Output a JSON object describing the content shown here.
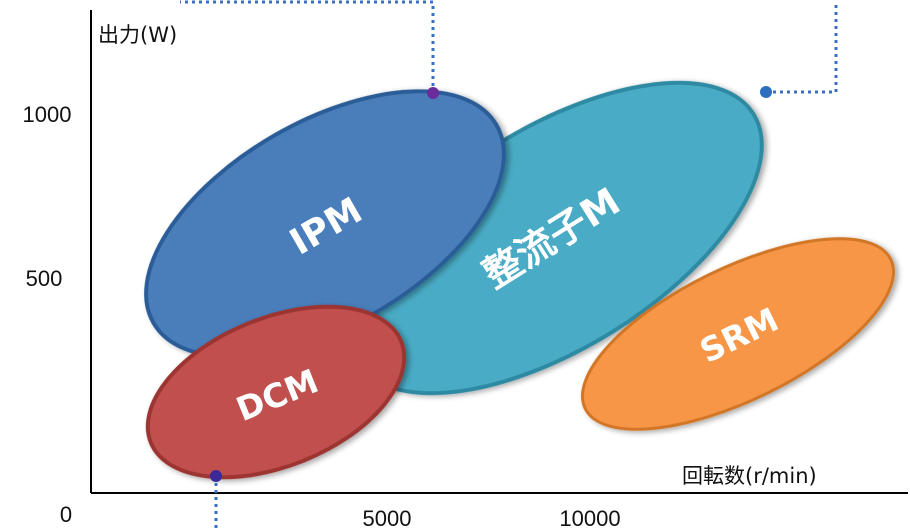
{
  "chart_data": {
    "type": "scatter",
    "title": "",
    "ylabel": "出力(W)",
    "xlabel": "回転数(r/min)",
    "origin_label": "0",
    "y_ticks": [
      {
        "label": "1000",
        "value": 1000
      },
      {
        "label": "500",
        "value": 500
      }
    ],
    "x_ticks": [
      {
        "label": "5000",
        "value": 5000
      },
      {
        "label": "10000",
        "value": 10000
      }
    ],
    "xlim": [
      0,
      15000
    ],
    "ylim": [
      0,
      1200
    ],
    "grid": false,
    "regions": [
      {
        "label": "整流子M",
        "color": "#4aabc5",
        "rotation_deg": -32
      },
      {
        "label": "IPM",
        "color": "#4a7ebb",
        "rotation_deg": -30
      },
      {
        "label": "DCM",
        "color": "#c0504d",
        "rotation_deg": -22
      },
      {
        "label": "SRM",
        "color": "#f79646",
        "rotation_deg": -26
      }
    ],
    "annotation_points": [
      {
        "name": "ipm-peak-marker",
        "x": 6000,
        "y": 1000
      },
      {
        "name": "commutator-peak-marker",
        "x": 11800,
        "y": 1000
      },
      {
        "name": "dcm-low-marker",
        "x": 2200,
        "y": 10
      }
    ]
  }
}
